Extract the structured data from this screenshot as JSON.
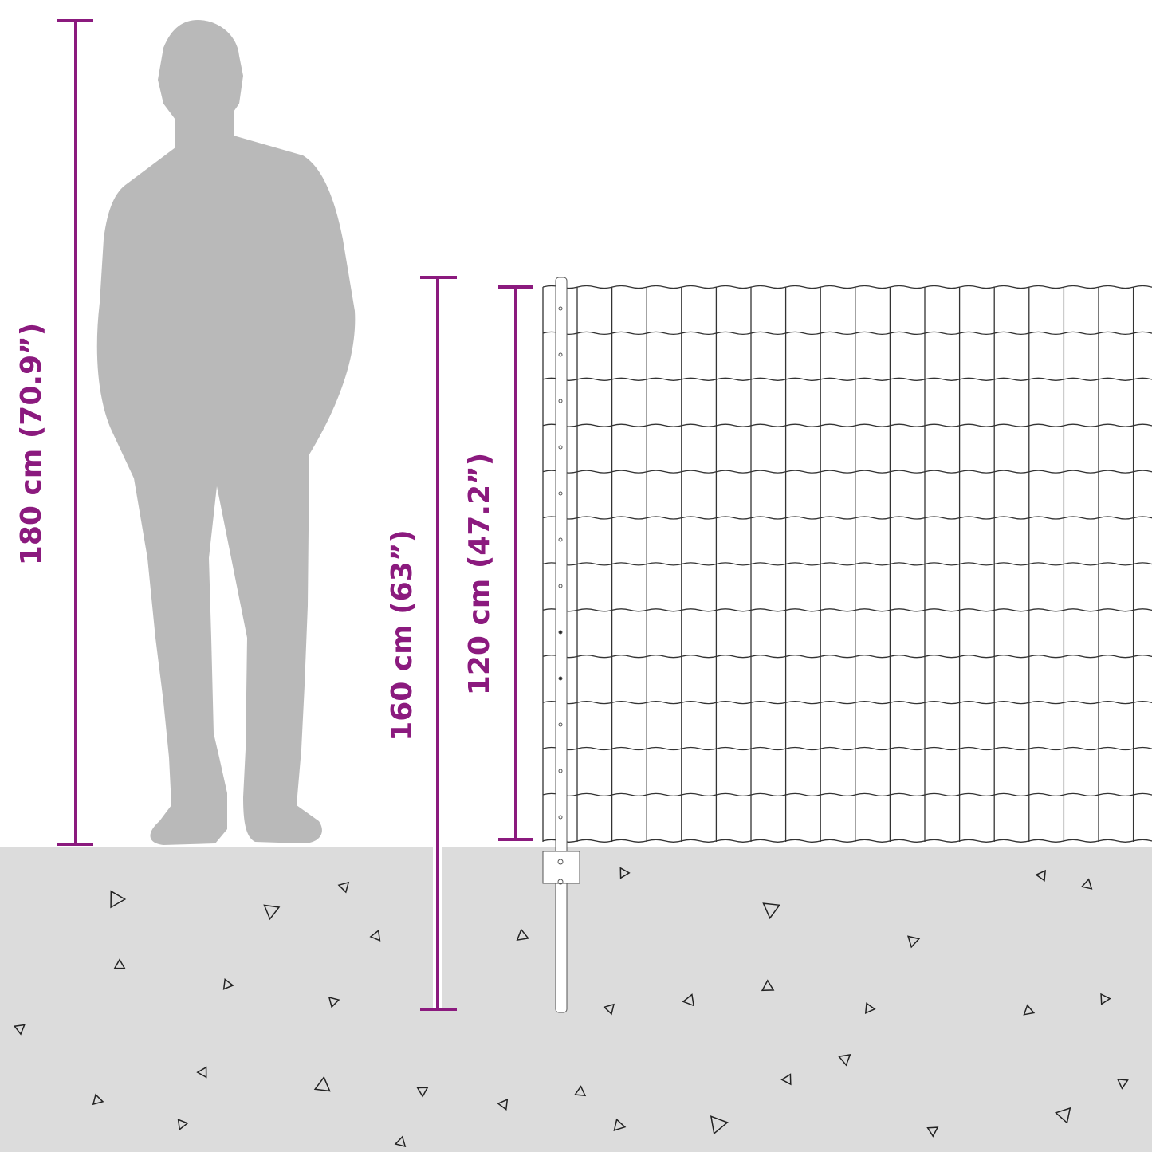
{
  "colors": {
    "dimension": "#8b1a7e",
    "ground": "#dcdcdc",
    "silhouette": "#b9b9b9",
    "wire": "#333333"
  },
  "dimensions": {
    "person_height": "180 cm (70.9”)",
    "post_height": "160 cm (63”)",
    "fence_height": "120 cm (47.2”)"
  }
}
